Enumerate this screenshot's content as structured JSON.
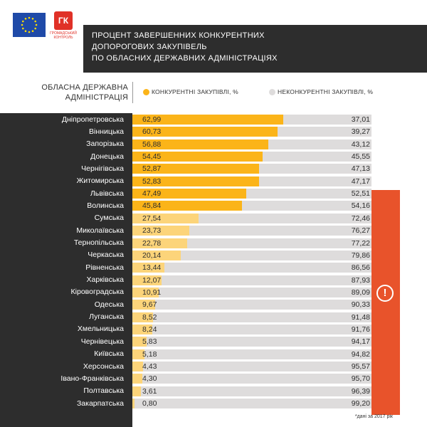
{
  "header": {
    "title_lines": [
      "ПРОЦЕНТ ЗАВЕРШЕННИХ КОНКУРЕНТНИХ",
      "ДОПОРОГОВИХ ЗАКУПІВЕЛЬ",
      "ПО ОБЛАСНИХ ДЕРЖАВНИХ АДМІНІСТРАЦІЯХ"
    ],
    "column_label_lines": [
      "ОБЛАСНА ДЕРЖАВНА",
      "АДМІНІСТРАЦІЯ"
    ],
    "logo_text": "ГК",
    "logo_caption": "ГРОМАДСЬКИЙ КОНТРОЛЬ",
    "eu_flag_icon": "eu-flag-icon"
  },
  "colors": {
    "competitive_dark": "#fbb419",
    "competitive_light": "#fcd47a",
    "noncompetitive": "#dedcdc",
    "dark": "#2d2d2d",
    "alert": "#e8532b"
  },
  "chart_data": {
    "type": "bar",
    "stacked": true,
    "orientation": "horizontal",
    "title": "ПРОЦЕНТ ЗАВЕРШЕННИХ КОНКУРЕНТНИХ ДОПОРОГОВИХ ЗАКУПІВЕЛЬ ПО ОБЛАСНИХ ДЕРЖАВНИХ АДМІНІСТРАЦІЯХ",
    "xlim": [
      0,
      100
    ],
    "legend": [
      "КОНКУРЕНТНІ ЗАКУПІВЛІ, %",
      "НЕКОНКУРЕНТНІ ЗАКУПІВЛІ, %"
    ],
    "categories": [
      "Дніпропетровська",
      "Вінницька",
      "Запорізька",
      "Донецька",
      "Чернігівська",
      "Житомирська",
      "Львівська",
      "Волинська",
      "Сумська",
      "Миколаївська",
      "Тернопільська",
      "Черкаська",
      "Рівненська",
      "Харківська",
      "Кіровоградська",
      "Одеська",
      "Луганська",
      "Хмельницька",
      "Чернівецька",
      "Київська",
      "Херсонська",
      "Івано-Франківська",
      "Полтавська",
      "Закарпатська"
    ],
    "series": [
      {
        "name": "КОНКУРЕНТНІ ЗАКУПІВЛІ, %",
        "values": [
          62.99,
          60.73,
          56.88,
          54.45,
          52.87,
          52.83,
          47.49,
          45.84,
          27.54,
          23.73,
          22.78,
          20.14,
          13.44,
          12.07,
          10.91,
          9.67,
          8.52,
          8.24,
          5.83,
          5.18,
          4.43,
          4.3,
          3.61,
          0.8
        ],
        "labels": [
          "62,99",
          "60,73",
          "56,88",
          "54,45",
          "52,87",
          "52,83",
          "47,49",
          "45,84",
          "27,54",
          "23,73",
          "22,78",
          "20,14",
          "13,44",
          "12,07",
          "10,91",
          "9,67",
          "8,52",
          "8,24",
          "5,83",
          "5,18",
          "4,43",
          "4,30",
          "3,61",
          "0,80"
        ]
      },
      {
        "name": "НЕКОНКУРЕНТНІ ЗАКУПІВЛІ, %",
        "values": [
          37.01,
          39.27,
          43.12,
          45.55,
          47.13,
          47.17,
          52.51,
          54.16,
          72.46,
          76.27,
          77.22,
          79.86,
          86.56,
          87.93,
          89.09,
          90.33,
          91.48,
          91.76,
          94.17,
          94.82,
          95.57,
          95.7,
          96.39,
          99.2
        ],
        "labels": [
          "37,01",
          "39,27",
          "43,12",
          "45,55",
          "47,13",
          "47,17",
          "52,51",
          "54,16",
          "72,46",
          "76,27",
          "77,22",
          "79,86",
          "86,56",
          "87,93",
          "89,09",
          "90,33",
          "91,48",
          "91,76",
          "94,17",
          "94,82",
          "95,57",
          "95,70",
          "96,39",
          "99,20"
        ]
      }
    ],
    "highlight_threshold": 50,
    "alert_icon": "exclamation-icon",
    "footnote": "*дані за 2017 рік"
  }
}
